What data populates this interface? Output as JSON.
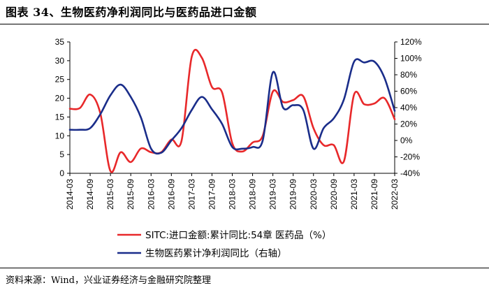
{
  "title": "图表 34、生物医药净利润同比与医药品进口金额",
  "source": "资料来源：Wind，兴业证券经济与金融研究院整理",
  "chart_data": {
    "type": "line",
    "title": "图表 34、生物医药净利润同比与医药品进口金额",
    "x_ticks": [
      "2014-03",
      "2014-09",
      "2015-03",
      "2015-09",
      "2016-03",
      "2016-09",
      "2017-03",
      "2017-09",
      "2018-03",
      "2018-09",
      "2019-03",
      "2019-09",
      "2020-03",
      "2020-09",
      "2021-03",
      "2021-09",
      "2022-03"
    ],
    "left_axis": {
      "ylim": [
        0,
        35
      ],
      "ticks": [
        "0",
        "5",
        "10",
        "15",
        "20",
        "25",
        "30",
        "35"
      ]
    },
    "right_axis": {
      "ylim": [
        -40,
        120
      ],
      "ticks": [
        "-40%",
        "-20%",
        "0%",
        "20%",
        "40%",
        "60%",
        "80%",
        "100%",
        "120%"
      ]
    },
    "series": [
      {
        "name": "SITC:进口金额:累计同比:54章 医药品（%）",
        "axis": "left",
        "color": "#e8282a",
        "x": [
          "2014-03",
          "2014-06",
          "2014-09",
          "2014-12",
          "2015-03",
          "2015-06",
          "2015-09",
          "2015-12",
          "2016-03",
          "2016-06",
          "2016-09",
          "2016-12",
          "2017-03",
          "2017-06",
          "2017-09",
          "2017-12",
          "2018-03",
          "2018-06",
          "2018-09",
          "2018-12",
          "2019-03",
          "2019-06",
          "2019-09",
          "2019-12",
          "2020-03",
          "2020-06",
          "2020-09",
          "2020-12",
          "2021-03",
          "2021-06",
          "2021-09",
          "2021-12",
          "2022-03"
        ],
        "values": [
          17.2,
          17.4,
          21.0,
          16.0,
          0.6,
          5.6,
          3.0,
          6.6,
          5.6,
          5.6,
          9.0,
          8.6,
          31.0,
          30.8,
          23.0,
          21.5,
          8.0,
          5.8,
          8.2,
          10.0,
          21.8,
          19.0,
          19.5,
          20.5,
          12.0,
          7.5,
          7.5,
          3.2,
          21.0,
          18.4,
          18.6,
          20.0,
          14.4
        ]
      },
      {
        "name": "生物医药累计净利润同比（右轴）",
        "axis": "right",
        "color": "#1a2d8a",
        "x": [
          "2014-03",
          "2014-06",
          "2014-09",
          "2014-12",
          "2015-03",
          "2015-06",
          "2015-09",
          "2015-12",
          "2016-03",
          "2016-06",
          "2016-09",
          "2016-12",
          "2017-03",
          "2017-06",
          "2017-09",
          "2017-12",
          "2018-03",
          "2018-06",
          "2018-09",
          "2018-12",
          "2019-03",
          "2019-06",
          "2019-09",
          "2019-12",
          "2020-03",
          "2020-06",
          "2020-09",
          "2020-12",
          "2021-03",
          "2021-06",
          "2021-09",
          "2021-12",
          "2022-03"
        ],
        "values": [
          13,
          13,
          15,
          32,
          55,
          68,
          53,
          28,
          -10,
          -15,
          0,
          15,
          37,
          53,
          38,
          20,
          -8,
          -10,
          -8,
          0,
          83,
          40,
          43,
          37,
          -10,
          15,
          27,
          50,
          96,
          95,
          96,
          76,
          36
        ]
      }
    ],
    "legend": "bottom-center"
  }
}
